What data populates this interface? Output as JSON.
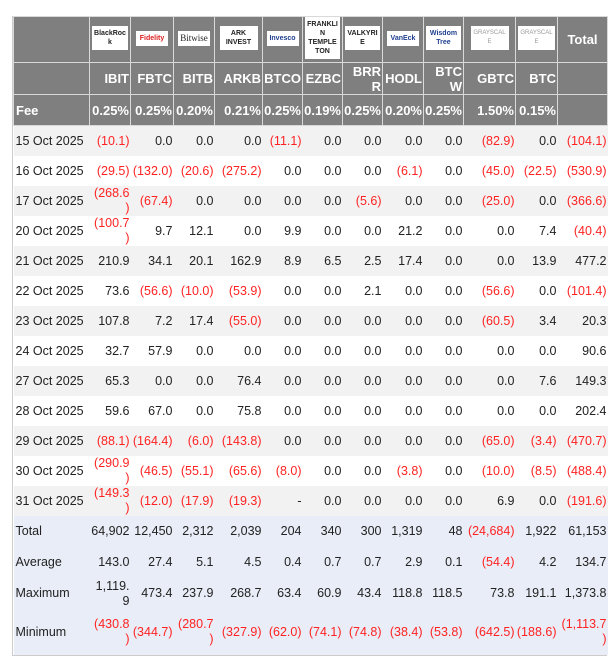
{
  "header": {
    "logos": [
      "BlackRock",
      "Fidelity",
      "Bitwise",
      "ARK INVEST",
      "Invesco",
      "FRANKLIN TEMPLETON",
      "VALKYRIE",
      "VanEck",
      "WisdomTree",
      "GRAYSCALE",
      "GRAYSCALE"
    ],
    "total_label": "Total",
    "tickers": [
      "IBIT",
      "FBTC",
      "BITB",
      "ARKB",
      "BTCO",
      "EZBC",
      "BRRR",
      "HODL",
      "BTCW",
      "GBTC",
      "BTC"
    ],
    "fee_label": "Fee",
    "fees": [
      "0.25%",
      "0.25%",
      "0.20%",
      "0.21%",
      "0.25%",
      "0.19%",
      "0.25%",
      "0.20%",
      "0.25%",
      "1.50%",
      "0.15%"
    ]
  },
  "colors": {
    "header_bg": "#7f7f7f",
    "negative": "#ff2222",
    "summary_bg": "#e9edf7",
    "alt_row": "#f2f2f2"
  },
  "rows": [
    {
      "date": "15 Oct 2025",
      "values": [
        "(10.1)",
        "0.0",
        "0.0",
        "0.0",
        "(11.1)",
        "0.0",
        "0.0",
        "0.0",
        "0.0",
        "(82.9)",
        "0.0",
        "(104.1)"
      ]
    },
    {
      "date": "16 Oct 2025",
      "values": [
        "(29.5)",
        "(132.0)",
        "(20.6)",
        "(275.2)",
        "0.0",
        "0.0",
        "0.0",
        "(6.1)",
        "0.0",
        "(45.0)",
        "(22.5)",
        "(530.9)"
      ]
    },
    {
      "date": "17 Oct 2025",
      "values": [
        "(268.6)",
        "(67.4)",
        "0.0",
        "0.0",
        "0.0",
        "0.0",
        "(5.6)",
        "0.0",
        "0.0",
        "(25.0)",
        "0.0",
        "(366.6)"
      ]
    },
    {
      "date": "20 Oct 2025",
      "values": [
        "(100.7)",
        "9.7",
        "12.1",
        "0.0",
        "9.9",
        "0.0",
        "0.0",
        "21.2",
        "0.0",
        "0.0",
        "7.4",
        "(40.4)"
      ]
    },
    {
      "date": "21 Oct 2025",
      "values": [
        "210.9",
        "34.1",
        "20.1",
        "162.9",
        "8.9",
        "6.5",
        "2.5",
        "17.4",
        "0.0",
        "0.0",
        "13.9",
        "477.2"
      ]
    },
    {
      "date": "22 Oct 2025",
      "values": [
        "73.6",
        "(56.6)",
        "(10.0)",
        "(53.9)",
        "0.0",
        "0.0",
        "2.1",
        "0.0",
        "0.0",
        "(56.6)",
        "0.0",
        "(101.4)"
      ]
    },
    {
      "date": "23 Oct 2025",
      "values": [
        "107.8",
        "7.2",
        "17.4",
        "(55.0)",
        "0.0",
        "0.0",
        "0.0",
        "0.0",
        "0.0",
        "(60.5)",
        "3.4",
        "20.3"
      ]
    },
    {
      "date": "24 Oct 2025",
      "values": [
        "32.7",
        "57.9",
        "0.0",
        "0.0",
        "0.0",
        "0.0",
        "0.0",
        "0.0",
        "0.0",
        "0.0",
        "0.0",
        "90.6"
      ]
    },
    {
      "date": "27 Oct 2025",
      "values": [
        "65.3",
        "0.0",
        "0.0",
        "76.4",
        "0.0",
        "0.0",
        "0.0",
        "0.0",
        "0.0",
        "0.0",
        "7.6",
        "149.3"
      ]
    },
    {
      "date": "28 Oct 2025",
      "values": [
        "59.6",
        "67.0",
        "0.0",
        "75.8",
        "0.0",
        "0.0",
        "0.0",
        "0.0",
        "0.0",
        "0.0",
        "0.0",
        "202.4"
      ]
    },
    {
      "date": "29 Oct 2025",
      "values": [
        "(88.1)",
        "(164.4)",
        "(6.0)",
        "(143.8)",
        "0.0",
        "0.0",
        "0.0",
        "0.0",
        "0.0",
        "(65.0)",
        "(3.4)",
        "(470.7)"
      ]
    },
    {
      "date": "30 Oct 2025",
      "values": [
        "(290.9)",
        "(46.5)",
        "(55.1)",
        "(65.6)",
        "(8.0)",
        "0.0",
        "0.0",
        "(3.8)",
        "0.0",
        "(10.0)",
        "(8.5)",
        "(488.4)"
      ]
    },
    {
      "date": "31 Oct 2025",
      "values": [
        "(149.3)",
        "(12.0)",
        "(17.9)",
        "(19.3)",
        "-",
        "0.0",
        "0.0",
        "0.0",
        "0.0",
        "6.9",
        "0.0",
        "(191.6)"
      ]
    }
  ],
  "summary": [
    {
      "label": "Total",
      "values": [
        "64,902",
        "12,450",
        "2,312",
        "2,039",
        "204",
        "340",
        "300",
        "1,319",
        "48",
        "(24,684)",
        "1,922",
        "61,153"
      ]
    },
    {
      "label": "Average",
      "values": [
        "143.0",
        "27.4",
        "5.1",
        "4.5",
        "0.4",
        "0.7",
        "0.7",
        "2.9",
        "0.1",
        "(54.4)",
        "4.2",
        "134.7"
      ]
    },
    {
      "label": "Maximum",
      "values": [
        "1,119.9",
        "473.4",
        "237.9",
        "268.7",
        "63.4",
        "60.9",
        "43.4",
        "118.8",
        "118.5",
        "73.8",
        "191.1",
        "1,373.8"
      ]
    },
    {
      "label": "Minimum",
      "values": [
        "(430.8)",
        "(344.7)",
        "(280.7)",
        "(327.9)",
        "(62.0)",
        "(74.1)",
        "(74.8)",
        "(38.4)",
        "(53.8)",
        "(642.5)",
        "(188.6)",
        "(1,113.7)"
      ]
    }
  ]
}
